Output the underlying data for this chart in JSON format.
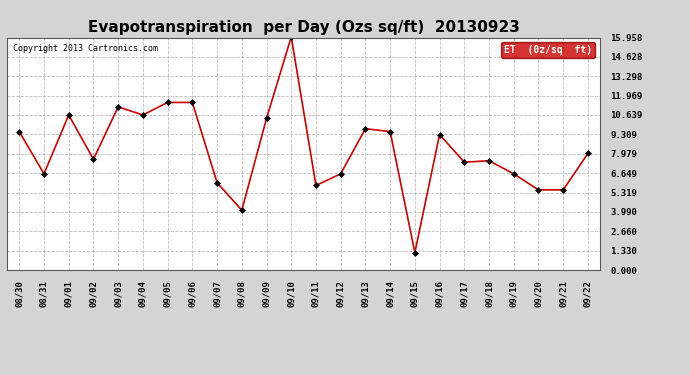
{
  "title": "Evapotranspiration  per Day (Ozs sq/ft)  20130923",
  "copyright": "Copyright 2013 Cartronics.com",
  "legend_label": "ET  (0z/sq  ft)",
  "x_labels": [
    "08/30",
    "08/31",
    "09/01",
    "09/02",
    "09/03",
    "09/04",
    "09/05",
    "09/06",
    "09/07",
    "09/08",
    "09/09",
    "09/10",
    "09/11",
    "09/12",
    "09/13",
    "09/14",
    "09/15",
    "09/16",
    "09/17",
    "09/18",
    "09/19",
    "09/20",
    "09/21",
    "09/22"
  ],
  "y_values": [
    9.5,
    6.6,
    10.639,
    7.6,
    11.2,
    10.639,
    11.5,
    11.5,
    6.0,
    4.1,
    10.4,
    16.0,
    5.8,
    6.6,
    9.7,
    9.5,
    1.2,
    9.3,
    7.4,
    7.5,
    6.6,
    5.5,
    5.5,
    8.0
  ],
  "yticks": [
    0.0,
    1.33,
    2.66,
    3.99,
    5.319,
    6.649,
    7.979,
    9.309,
    10.639,
    11.969,
    13.298,
    14.628,
    15.958
  ],
  "ylim": [
    0.0,
    15.958
  ],
  "line_color": "#cc0000",
  "marker_color": "#000000",
  "bg_color": "#d4d4d4",
  "plot_bg_color": "#ffffff",
  "grid_color": "#aaaaaa",
  "title_fontsize": 11,
  "legend_bg": "#cc0000",
  "legend_text_color": "#ffffff"
}
